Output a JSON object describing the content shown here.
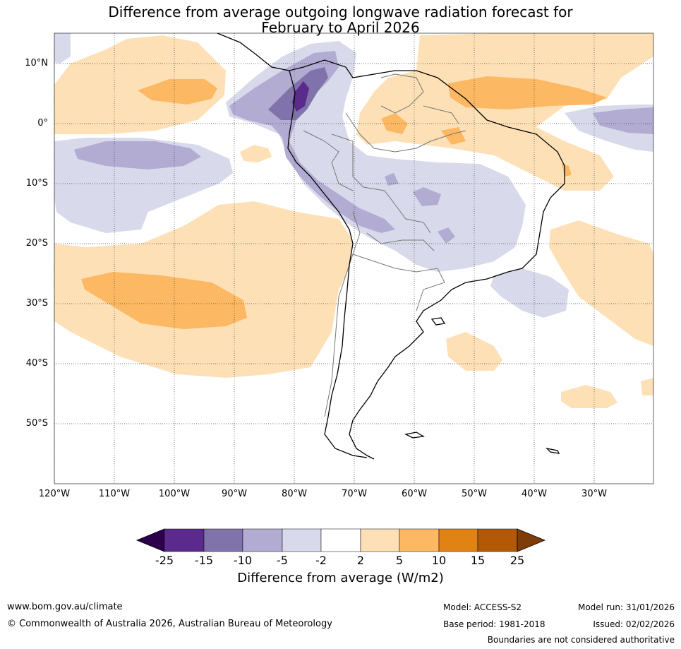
{
  "title": {
    "line1": "Difference from average outgoing longwave radiation forecast for",
    "line2": "February to April 2026"
  },
  "latitude_labels": [
    "10°N",
    "0°",
    "10°S",
    "20°S",
    "30°S",
    "40°S",
    "50°S"
  ],
  "longitude_labels": [
    "120°W",
    "110°W",
    "100°W",
    "90°W",
    "80°W",
    "70°W",
    "60°W",
    "50°W",
    "40°W",
    "30°W"
  ],
  "colorbar": {
    "tick_labels": [
      "-25",
      "-15",
      "-10",
      "-5",
      "-2",
      "2",
      "5",
      "10",
      "15",
      "25"
    ],
    "colors": [
      "#2d004b",
      "#5a2a8c",
      "#8073ac",
      "#b2abd2",
      "#d8daeb",
      "#ffffff",
      "#fee0b6",
      "#fdb863",
      "#e08214",
      "#b35806",
      "#7f3b08"
    ],
    "title": "Difference from average (W/m2)"
  },
  "footer": {
    "website": "www.bom.gov.au/climate",
    "copyright": "© Commonwealth of Australia 2026, Australian Bureau of Meteorology",
    "model": "Model: ACCESS-S2",
    "base_period": "Base period: 1981-2018",
    "model_run": "Model run: 31/01/2026",
    "issued": "Issued: 02/02/2026",
    "disclaimer": "Boundaries are not considered authoritative"
  }
}
